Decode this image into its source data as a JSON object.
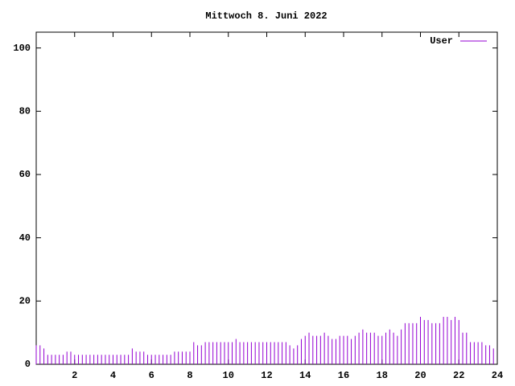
{
  "chart_data": {
    "type": "impulse",
    "title": "Mittwoch 8. Juni 2022",
    "x": [
      0,
      0.2,
      0.4,
      0.6,
      0.8,
      1,
      1.2,
      1.4,
      1.6,
      1.8,
      2,
      2.2,
      2.4,
      2.6,
      2.8,
      3,
      3.2,
      3.4,
      3.6,
      3.8,
      4,
      4.2,
      4.4,
      4.6,
      4.8,
      5,
      5.2,
      5.4,
      5.6,
      5.8,
      6,
      6.2,
      6.4,
      6.6,
      6.8,
      7,
      7.2,
      7.4,
      7.6,
      7.8,
      8,
      8.2,
      8.4,
      8.6,
      8.8,
      9,
      9.2,
      9.4,
      9.6,
      9.8,
      10,
      10.2,
      10.4,
      10.6,
      10.8,
      11,
      11.2,
      11.4,
      11.6,
      11.8,
      12,
      12.2,
      12.4,
      12.6,
      12.8,
      13,
      13.2,
      13.4,
      13.6,
      13.8,
      14,
      14.2,
      14.4,
      14.6,
      14.8,
      15,
      15.2,
      15.4,
      15.6,
      15.8,
      16,
      16.2,
      16.4,
      16.6,
      16.8,
      17,
      17.2,
      17.4,
      17.6,
      17.8,
      18,
      18.2,
      18.4,
      18.6,
      18.8,
      19,
      19.2,
      19.4,
      19.6,
      19.8,
      20,
      20.2,
      20.4,
      20.6,
      20.8,
      21,
      21.2,
      21.4,
      21.6,
      21.8,
      22,
      22.2,
      22.4,
      22.6,
      22.8,
      23,
      23.2,
      23.4,
      23.6,
      23.8
    ],
    "series": [
      {
        "name": "User",
        "color": "#9400d3",
        "values": [
          6,
          6,
          5,
          3,
          3,
          3,
          3,
          3,
          4,
          4,
          3,
          3,
          3,
          3,
          3,
          3,
          3,
          3,
          3,
          3,
          3,
          3,
          3,
          3,
          3,
          5,
          4,
          4,
          4,
          3,
          3,
          3,
          3,
          3,
          3,
          3,
          4,
          4,
          4,
          4,
          4,
          7,
          6,
          6,
          7,
          7,
          7,
          7,
          7,
          7,
          7,
          7,
          8,
          7,
          7,
          7,
          7,
          7,
          7,
          7,
          7,
          7,
          7,
          7,
          7,
          7,
          6,
          5,
          6,
          8,
          9,
          10,
          9,
          9,
          9,
          10,
          9,
          8,
          8,
          9,
          9,
          9,
          8,
          9,
          10,
          11,
          10,
          10,
          10,
          9,
          9,
          10,
          11,
          10,
          9,
          11,
          13,
          13,
          13,
          13,
          15,
          14,
          14,
          13,
          13,
          13,
          15,
          15,
          14,
          15,
          14,
          10,
          10,
          7,
          7,
          7,
          7,
          6,
          6,
          5
        ]
      }
    ],
    "xlim": [
      0,
      24
    ],
    "xticks": [
      2,
      4,
      6,
      8,
      10,
      12,
      14,
      16,
      18,
      20,
      22,
      24
    ],
    "ylim": [
      0,
      105
    ],
    "yticks": [
      0,
      20,
      40,
      60,
      80,
      100
    ],
    "legend": "top-right"
  }
}
